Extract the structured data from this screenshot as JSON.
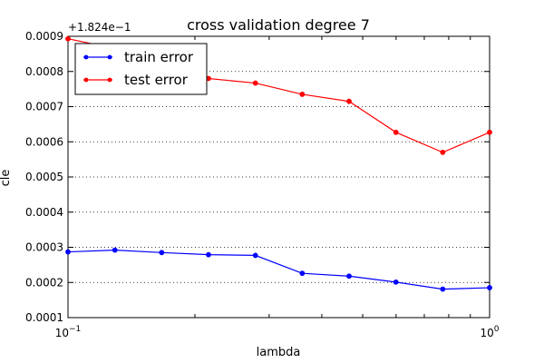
{
  "chart_data": {
    "type": "line",
    "title": "cross validation degree 7",
    "xlabel": "lambda",
    "ylabel": "cle",
    "x_scale": "log",
    "xlim": [
      0.1,
      1
    ],
    "ylim": [
      0.0001,
      0.0009
    ],
    "y_offset_label": "+1.824e−1",
    "x_ticks": [
      {
        "value": 0.1,
        "base": "10",
        "exp": "−1"
      },
      {
        "value": 1,
        "base": "10",
        "exp": "0"
      }
    ],
    "y_ticks": [
      {
        "value": 0.0001,
        "label": "0.0001"
      },
      {
        "value": 0.0002,
        "label": "0.0002"
      },
      {
        "value": 0.0003,
        "label": "0.0003"
      },
      {
        "value": 0.0004,
        "label": "0.0004"
      },
      {
        "value": 0.0005,
        "label": "0.0005"
      },
      {
        "value": 0.0006,
        "label": "0.0006"
      },
      {
        "value": 0.0007,
        "label": "0.0007"
      },
      {
        "value": 0.0008,
        "label": "0.0008"
      },
      {
        "value": 0.0009,
        "label": "0.0009"
      }
    ],
    "grid": "y",
    "legend_position": "top-left",
    "x": [
      0.1,
      0.1292,
      0.1668,
      0.2154,
      0.2783,
      0.3594,
      0.4642,
      0.5995,
      0.7743,
      1.0
    ],
    "series": [
      {
        "name": "train error",
        "color": "#0000ff",
        "values": [
          0.000287,
          0.000292,
          0.000285,
          0.000279,
          0.000277,
          0.000226,
          0.000218,
          0.000201,
          0.000181,
          0.000185
        ]
      },
      {
        "name": "test error",
        "color": "#ff0000",
        "values": [
          0.000893,
          0.000865,
          0.00082,
          0.00078,
          0.000767,
          0.000735,
          0.000715,
          0.000627,
          0.00057,
          0.000627
        ]
      }
    ]
  }
}
